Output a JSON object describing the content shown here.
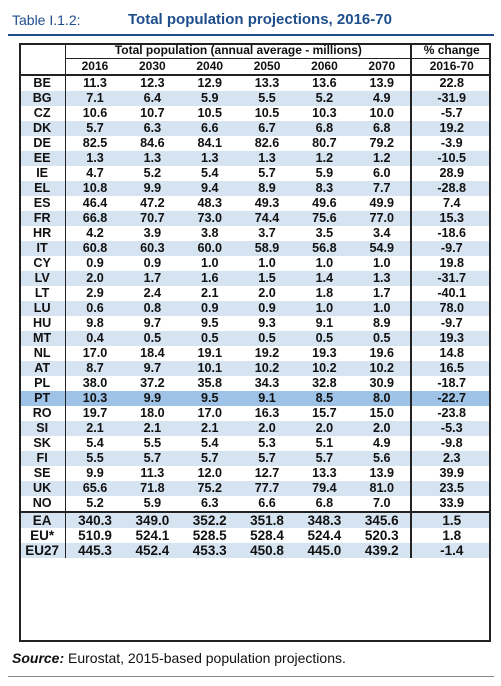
{
  "title": {
    "label": "Table I.1.2:",
    "text": "Total population projections, 2016-70"
  },
  "header": {
    "group_label": "Total population (annual average - millions)",
    "change_label": "% change",
    "years": [
      "2016",
      "2030",
      "2040",
      "2050",
      "2060",
      "2070"
    ],
    "change_period": "2016-70"
  },
  "rows": [
    {
      "c": "BE",
      "v": [
        "11.3",
        "12.3",
        "12.9",
        "13.3",
        "13.6",
        "13.9"
      ],
      "p": "22.8"
    },
    {
      "c": "BG",
      "v": [
        "7.1",
        "6.4",
        "5.9",
        "5.5",
        "5.2",
        "4.9"
      ],
      "p": "-31.9"
    },
    {
      "c": "CZ",
      "v": [
        "10.6",
        "10.7",
        "10.5",
        "10.5",
        "10.3",
        "10.0"
      ],
      "p": "-5.7"
    },
    {
      "c": "DK",
      "v": [
        "5.7",
        "6.3",
        "6.6",
        "6.7",
        "6.8",
        "6.8"
      ],
      "p": "19.2"
    },
    {
      "c": "DE",
      "v": [
        "82.5",
        "84.6",
        "84.1",
        "82.6",
        "80.7",
        "79.2"
      ],
      "p": "-3.9"
    },
    {
      "c": "EE",
      "v": [
        "1.3",
        "1.3",
        "1.3",
        "1.3",
        "1.2",
        "1.2"
      ],
      "p": "-10.5"
    },
    {
      "c": "IE",
      "v": [
        "4.7",
        "5.2",
        "5.4",
        "5.7",
        "5.9",
        "6.0"
      ],
      "p": "28.9"
    },
    {
      "c": "EL",
      "v": [
        "10.8",
        "9.9",
        "9.4",
        "8.9",
        "8.3",
        "7.7"
      ],
      "p": "-28.8"
    },
    {
      "c": "ES",
      "v": [
        "46.4",
        "47.2",
        "48.3",
        "49.3",
        "49.6",
        "49.9"
      ],
      "p": "7.4"
    },
    {
      "c": "FR",
      "v": [
        "66.8",
        "70.7",
        "73.0",
        "74.4",
        "75.6",
        "77.0"
      ],
      "p": "15.3"
    },
    {
      "c": "HR",
      "v": [
        "4.2",
        "3.9",
        "3.8",
        "3.7",
        "3.5",
        "3.4"
      ],
      "p": "-18.6"
    },
    {
      "c": "IT",
      "v": [
        "60.8",
        "60.3",
        "60.0",
        "58.9",
        "56.8",
        "54.9"
      ],
      "p": "-9.7"
    },
    {
      "c": "CY",
      "v": [
        "0.9",
        "0.9",
        "1.0",
        "1.0",
        "1.0",
        "1.0"
      ],
      "p": "19.8"
    },
    {
      "c": "LV",
      "v": [
        "2.0",
        "1.7",
        "1.6",
        "1.5",
        "1.4",
        "1.3"
      ],
      "p": "-31.7"
    },
    {
      "c": "LT",
      "v": [
        "2.9",
        "2.4",
        "2.1",
        "2.0",
        "1.8",
        "1.7"
      ],
      "p": "-40.1"
    },
    {
      "c": "LU",
      "v": [
        "0.6",
        "0.8",
        "0.9",
        "0.9",
        "1.0",
        "1.0"
      ],
      "p": "78.0"
    },
    {
      "c": "HU",
      "v": [
        "9.8",
        "9.7",
        "9.5",
        "9.3",
        "9.1",
        "8.9"
      ],
      "p": "-9.7"
    },
    {
      "c": "MT",
      "v": [
        "0.4",
        "0.5",
        "0.5",
        "0.5",
        "0.5",
        "0.5"
      ],
      "p": "19.3"
    },
    {
      "c": "NL",
      "v": [
        "17.0",
        "18.4",
        "19.1",
        "19.2",
        "19.3",
        "19.6"
      ],
      "p": "14.8"
    },
    {
      "c": "AT",
      "v": [
        "8.7",
        "9.7",
        "10.1",
        "10.2",
        "10.2",
        "10.2"
      ],
      "p": "16.5"
    },
    {
      "c": "PL",
      "v": [
        "38.0",
        "37.2",
        "35.8",
        "34.3",
        "32.8",
        "30.9"
      ],
      "p": "-18.7"
    },
    {
      "c": "PT",
      "v": [
        "10.3",
        "9.9",
        "9.5",
        "9.1",
        "8.5",
        "8.0"
      ],
      "p": "-22.7"
    },
    {
      "c": "RO",
      "v": [
        "19.7",
        "18.0",
        "17.0",
        "16.3",
        "15.7",
        "15.0"
      ],
      "p": "-23.8"
    },
    {
      "c": "SI",
      "v": [
        "2.1",
        "2.1",
        "2.1",
        "2.0",
        "2.0",
        "2.0"
      ],
      "p": "-5.3"
    },
    {
      "c": "SK",
      "v": [
        "5.4",
        "5.5",
        "5.4",
        "5.3",
        "5.1",
        "4.9"
      ],
      "p": "-9.8"
    },
    {
      "c": "FI",
      "v": [
        "5.5",
        "5.7",
        "5.7",
        "5.7",
        "5.7",
        "5.6"
      ],
      "p": "2.3"
    },
    {
      "c": "SE",
      "v": [
        "9.9",
        "11.3",
        "12.0",
        "12.7",
        "13.3",
        "13.9"
      ],
      "p": "39.9"
    },
    {
      "c": "UK",
      "v": [
        "65.6",
        "71.8",
        "75.2",
        "77.7",
        "79.4",
        "81.0"
      ],
      "p": "23.5"
    },
    {
      "c": "NO",
      "v": [
        "5.2",
        "5.9",
        "6.3",
        "6.6",
        "6.8",
        "7.0"
      ],
      "p": "33.9"
    },
    {
      "c": "EA",
      "v": [
        "340.3",
        "349.0",
        "352.2",
        "351.8",
        "348.3",
        "345.6"
      ],
      "p": "1.5"
    },
    {
      "c": "EU*",
      "v": [
        "510.9",
        "524.1",
        "528.5",
        "528.4",
        "524.4",
        "520.3"
      ],
      "p": "1.8"
    },
    {
      "c": "EU27",
      "v": [
        "445.3",
        "452.4",
        "453.3",
        "450.8",
        "445.0",
        "439.2"
      ],
      "p": "-1.4"
    }
  ],
  "source": {
    "label": "Source:",
    "text": " Eurostat, 2015-based population projections."
  },
  "colors": {
    "accent": "#1f4e8c",
    "shaded_row": "#d6e3f0",
    "highlight_row": "#9ec3e6"
  }
}
